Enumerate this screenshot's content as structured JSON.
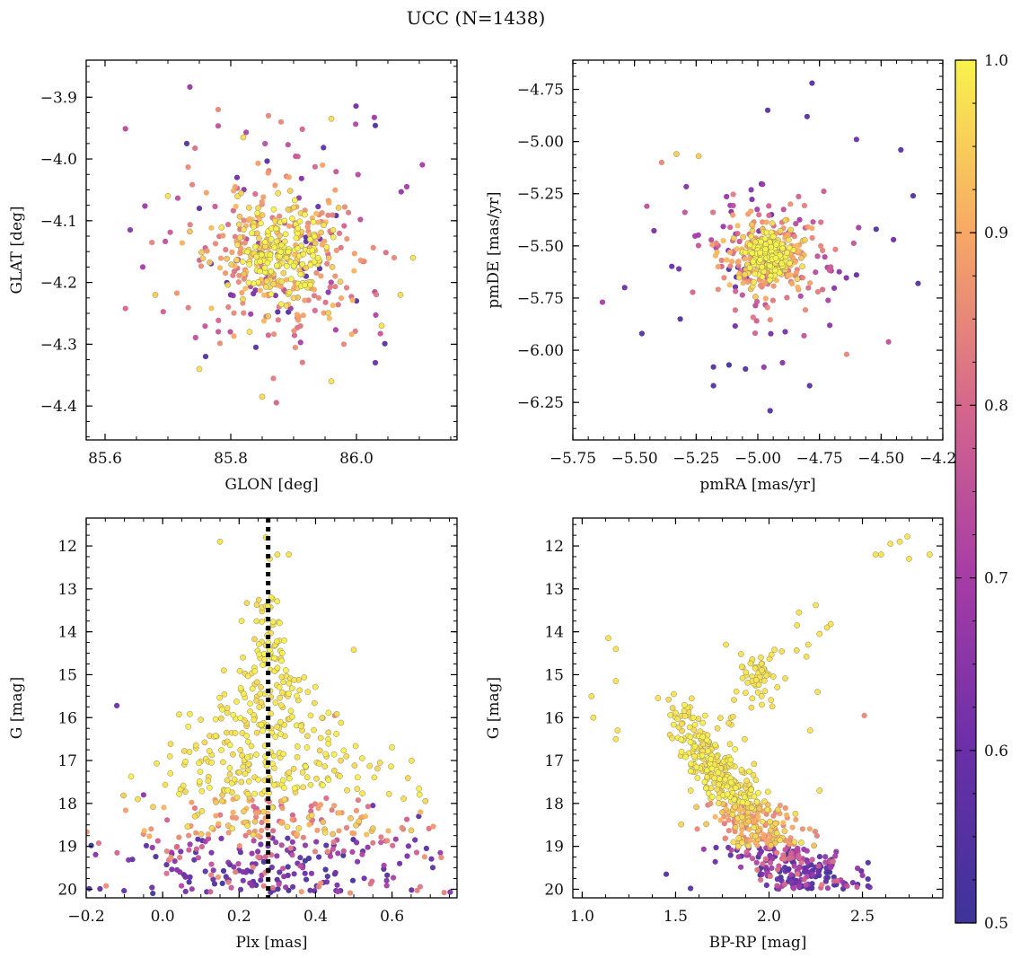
{
  "figure": {
    "title": "UCC (N=1438)"
  },
  "colorbar": {
    "min": 0.5,
    "max": 1.0,
    "colormap": "plasma",
    "ticks": [
      0.5,
      0.6,
      0.7,
      0.8,
      0.9,
      1.0
    ],
    "tick_labels": [
      "0.5",
      "0.6",
      "0.7",
      "0.8",
      "0.9",
      "1.0"
    ]
  },
  "chart_data": [
    {
      "id": "glon-glat",
      "type": "scatter",
      "xlabel": "GLON [deg]",
      "ylabel": "GLAT [deg]",
      "xlim": [
        85.57,
        86.16
      ],
      "ylim": [
        -4.455,
        -3.84
      ],
      "y_inverted": false,
      "xticks": [
        85.6,
        85.8,
        86.0
      ],
      "xtick_labels": [
        "85.6",
        "85.8",
        "86.0"
      ],
      "yticks": [
        -4.4,
        -4.3,
        -4.2,
        -4.1,
        -4.0,
        -3.9
      ],
      "ytick_labels": [
        "−4.4",
        "−4.3",
        "−4.2",
        "−4.1",
        "−4.0",
        "−3.9"
      ],
      "color_by": "membership probability",
      "cluster": {
        "x0": 85.88,
        "y0": -4.155,
        "sx": 0.1,
        "sy": 0.1
      },
      "points": [
        [
          85.64,
          -4.115,
          0.65
        ],
        [
          85.66,
          -4.175,
          0.7
        ],
        [
          85.68,
          -4.22,
          0.95
        ],
        [
          85.7,
          -4.06,
          0.98
        ],
        [
          85.73,
          -3.975,
          0.55
        ],
        [
          85.75,
          -4.34,
          0.98
        ],
        [
          85.76,
          -4.32,
          0.55
        ],
        [
          85.78,
          -3.92,
          0.85
        ],
        [
          85.81,
          -4.03,
          0.6
        ],
        [
          85.82,
          -3.965,
          0.97
        ],
        [
          85.84,
          -4.305,
          0.55
        ],
        [
          85.85,
          -4.385,
          0.97
        ],
        [
          85.86,
          -3.93,
          0.85
        ],
        [
          85.88,
          -3.94,
          0.85
        ],
        [
          85.92,
          -4.19,
          0.55
        ],
        [
          85.96,
          -4.36,
          0.98
        ],
        [
          85.96,
          -3.935,
          0.97
        ],
        [
          86.0,
          -4.23,
          0.55
        ],
        [
          86.03,
          -4.33,
          0.6
        ],
        [
          86.04,
          -4.27,
          0.98
        ],
        [
          86.06,
          -4.16,
          0.85
        ],
        [
          86.07,
          -4.22,
          0.97
        ],
        [
          86.09,
          -4.16,
          0.98
        ],
        [
          86.08,
          -4.045,
          0.7
        ],
        [
          85.75,
          -4.08,
          0.55
        ],
        [
          85.83,
          -4.28,
          0.98
        ],
        [
          85.98,
          -4.3,
          0.85
        ],
        [
          85.8,
          -4.22,
          0.6
        ]
      ]
    },
    {
      "id": "pm",
      "type": "scatter",
      "xlabel": "pmRA [mas/yr]",
      "ylabel": "pmDE [mas/yr]",
      "xlim": [
        -5.75,
        -4.25
      ],
      "ylim": [
        -6.43,
        -4.61
      ],
      "y_inverted": false,
      "xticks": [
        -5.75,
        -5.5,
        -5.25,
        -5.0,
        -4.75,
        -4.5,
        -4.25
      ],
      "xtick_labels": [
        "−5.75",
        "−5.50",
        "−5.25",
        "−5.00",
        "−4.75",
        "−4.50",
        "−4.25"
      ],
      "yticks": [
        -6.25,
        -6.0,
        -5.75,
        -5.5,
        -5.25,
        -5.0,
        -4.75
      ],
      "ytick_labels": [
        "−6.25",
        "−6.00",
        "−5.75",
        "−5.50",
        "−5.25",
        "−5.00",
        "−4.75"
      ],
      "color_by": "membership probability",
      "cluster": {
        "x0": -4.96,
        "y0": -5.55,
        "sx": 0.13,
        "sy": 0.14
      },
      "points": [
        [
          -4.78,
          -4.72,
          0.55
        ],
        [
          -4.96,
          -4.85,
          0.55
        ],
        [
          -4.8,
          -4.88,
          0.55
        ],
        [
          -4.42,
          -5.04,
          0.55
        ],
        [
          -4.35,
          -5.68,
          0.55
        ],
        [
          -5.63,
          -5.77,
          0.7
        ],
        [
          -5.47,
          -5.92,
          0.55
        ],
        [
          -4.95,
          -6.29,
          0.55
        ],
        [
          -4.79,
          -6.17,
          0.55
        ],
        [
          -5.18,
          -6.17,
          0.55
        ],
        [
          -4.47,
          -5.96,
          0.75
        ],
        [
          -4.37,
          -5.26,
          0.55
        ],
        [
          -5.33,
          -5.06,
          0.95
        ],
        [
          -5.24,
          -5.07,
          0.95
        ],
        [
          -5.39,
          -5.1,
          0.85
        ],
        [
          -4.6,
          -4.99,
          0.6
        ],
        [
          -5.54,
          -5.7,
          0.6
        ],
        [
          -4.64,
          -6.02,
          0.85
        ],
        [
          -5.18,
          -6.08,
          0.55
        ],
        [
          -4.9,
          -6.06,
          0.65
        ],
        [
          -5.45,
          -5.31,
          0.75
        ],
        [
          -4.45,
          -5.47,
          0.6
        ],
        [
          -4.52,
          -5.42,
          0.55
        ],
        [
          -5.05,
          -6.09,
          0.55
        ]
      ]
    },
    {
      "id": "plx-g",
      "type": "scatter",
      "xlabel": "Plx [mas]",
      "ylabel": "G [mag]",
      "xlim": [
        -0.2,
        0.77
      ],
      "ylim": [
        20.2,
        11.35
      ],
      "y_inverted": true,
      "xticks": [
        -0.2,
        0.0,
        0.2,
        0.4,
        0.6
      ],
      "xtick_labels": [
        "−0.2",
        "0.0",
        "0.2",
        "0.4",
        "0.6"
      ],
      "yticks": [
        12,
        13,
        14,
        15,
        16,
        17,
        18,
        19,
        20
      ],
      "ytick_labels": [
        "12",
        "13",
        "14",
        "15",
        "16",
        "17",
        "18",
        "19",
        "20"
      ],
      "color_by": "membership probability",
      "reference_line": {
        "x": 0.276,
        "style": "dotted"
      },
      "points": [
        [
          -0.12,
          15.72,
          0.6
        ],
        [
          0.15,
          11.9,
          0.98
        ],
        [
          0.27,
          11.8,
          0.98
        ],
        [
          0.3,
          12.2,
          0.98
        ],
        [
          0.33,
          12.2,
          0.98
        ],
        [
          0.5,
          14.42,
          0.98
        ],
        [
          0.28,
          12.3,
          0.98
        ],
        [
          0.27,
          13.4,
          0.98
        ],
        [
          0.45,
          15.95,
          0.85
        ],
        [
          0.67,
          18.3,
          0.55
        ],
        [
          0.66,
          18.85,
          0.6
        ],
        [
          0.69,
          19.05,
          0.55
        ],
        [
          0.62,
          19.4,
          0.6
        ],
        [
          0.07,
          16.8,
          0.98
        ],
        [
          0.1,
          16.05,
          0.98
        ],
        [
          -0.05,
          17.8,
          0.65
        ],
        [
          0.05,
          17.65,
          0.97
        ],
        [
          0.55,
          18.05,
          0.6
        ],
        [
          0.16,
          14.9,
          0.98
        ],
        [
          0.21,
          14.6,
          0.98
        ],
        [
          0.38,
          15.4,
          0.98
        ]
      ]
    },
    {
      "id": "bprp-g",
      "type": "scatter",
      "xlabel": "BP-RP [mag]",
      "ylabel": "G [mag]",
      "xlim": [
        0.95,
        2.93
      ],
      "ylim": [
        20.2,
        11.35
      ],
      "y_inverted": true,
      "xticks": [
        1.0,
        1.5,
        2.0,
        2.5
      ],
      "xtick_labels": [
        "1.0",
        "1.5",
        "2.0",
        "2.5"
      ],
      "yticks": [
        12,
        13,
        14,
        15,
        16,
        17,
        18,
        19,
        20
      ],
      "ytick_labels": [
        "12",
        "13",
        "14",
        "15",
        "16",
        "17",
        "18",
        "19",
        "20"
      ],
      "color_by": "membership probability",
      "points": [
        [
          2.57,
          12.2,
          0.98
        ],
        [
          2.6,
          12.2,
          0.98
        ],
        [
          2.65,
          11.95,
          0.98
        ],
        [
          2.7,
          11.9,
          0.98
        ],
        [
          2.74,
          11.78,
          0.98
        ],
        [
          2.75,
          12.3,
          0.98
        ],
        [
          2.86,
          12.2,
          0.98
        ],
        [
          2.25,
          13.38,
          0.98
        ],
        [
          2.33,
          13.82,
          0.98
        ],
        [
          2.31,
          13.9,
          0.98
        ],
        [
          2.27,
          14.05,
          0.98
        ],
        [
          2.21,
          14.3,
          0.98
        ],
        [
          2.2,
          14.58,
          0.98
        ],
        [
          2.16,
          13.55,
          0.98
        ],
        [
          2.15,
          13.85,
          0.98
        ],
        [
          2.03,
          14.42,
          0.98
        ],
        [
          1.14,
          14.15,
          0.98
        ],
        [
          1.18,
          14.4,
          0.98
        ],
        [
          1.05,
          15.5,
          0.98
        ],
        [
          1.06,
          16.0,
          0.98
        ],
        [
          1.19,
          16.3,
          0.98
        ],
        [
          1.18,
          16.5,
          0.98
        ],
        [
          1.18,
          15.15,
          0.98
        ],
        [
          1.49,
          15.45,
          0.98
        ],
        [
          2.51,
          15.95,
          0.85
        ],
        [
          2.27,
          17.7,
          0.98
        ],
        [
          2.53,
          19.38,
          0.55
        ],
        [
          1.58,
          19.98,
          0.55
        ],
        [
          1.45,
          19.65,
          0.55
        ],
        [
          1.77,
          14.3,
          0.98
        ],
        [
          1.85,
          14.52,
          0.98
        ],
        [
          1.96,
          15.5,
          0.98
        ],
        [
          2.26,
          15.4,
          0.98
        ],
        [
          2.22,
          16.3,
          0.98
        ],
        [
          1.87,
          16.5,
          0.98
        ],
        [
          1.92,
          17.08,
          0.97
        ]
      ]
    }
  ]
}
